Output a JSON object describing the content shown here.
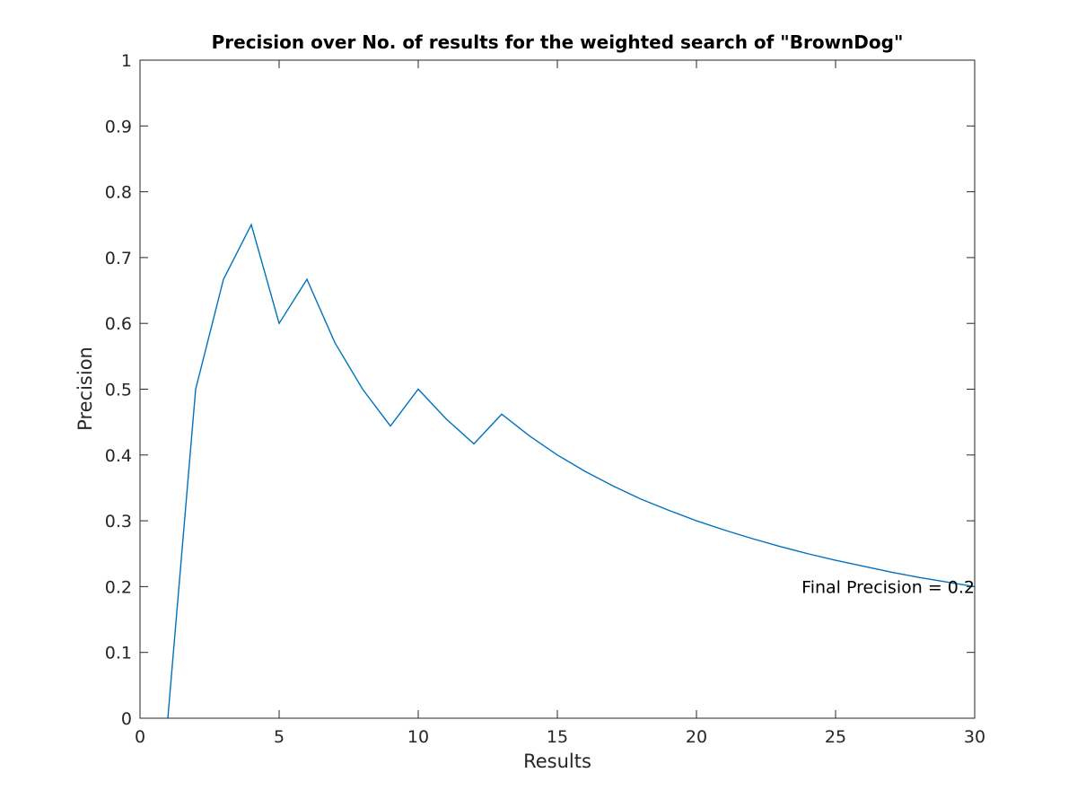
{
  "chart_data": {
    "type": "line",
    "title": "Precision over No. of results for the weighted search of \"BrownDog\"",
    "xlabel": "Results",
    "ylabel": "Precision",
    "xlim": [
      0,
      30
    ],
    "ylim": [
      0,
      1
    ],
    "xticks": [
      0,
      5,
      10,
      15,
      20,
      25,
      30
    ],
    "yticks": [
      0,
      0.1,
      0.2,
      0.3,
      0.4,
      0.5,
      0.6,
      0.7,
      0.8,
      0.9,
      1
    ],
    "xtick_labels": [
      "0",
      "5",
      "10",
      "15",
      "20",
      "25",
      "30"
    ],
    "ytick_labels": [
      "0",
      "0.1",
      "0.2",
      "0.3",
      "0.4",
      "0.5",
      "0.6",
      "0.7",
      "0.8",
      "0.9",
      "1"
    ],
    "grid": false,
    "line_color": "#0072bd",
    "annotation": {
      "text": "Final Precision = 0.2",
      "x": 30,
      "y": 0.2
    },
    "series": [
      {
        "x": [
          1,
          2,
          3,
          4,
          5,
          6,
          7,
          8,
          9,
          10,
          11,
          12,
          13,
          14,
          15,
          16,
          17,
          18,
          19,
          20,
          21,
          22,
          23,
          24,
          25,
          26,
          27,
          28,
          29,
          30
        ],
        "values": [
          0,
          0.5,
          0.667,
          0.75,
          0.6,
          0.667,
          0.571,
          0.5,
          0.444,
          0.5,
          0.455,
          0.417,
          0.462,
          0.429,
          0.4,
          0.375,
          0.353,
          0.333,
          0.316,
          0.3,
          0.286,
          0.273,
          0.261,
          0.25,
          0.24,
          0.231,
          0.222,
          0.214,
          0.207,
          0.2
        ]
      }
    ]
  }
}
